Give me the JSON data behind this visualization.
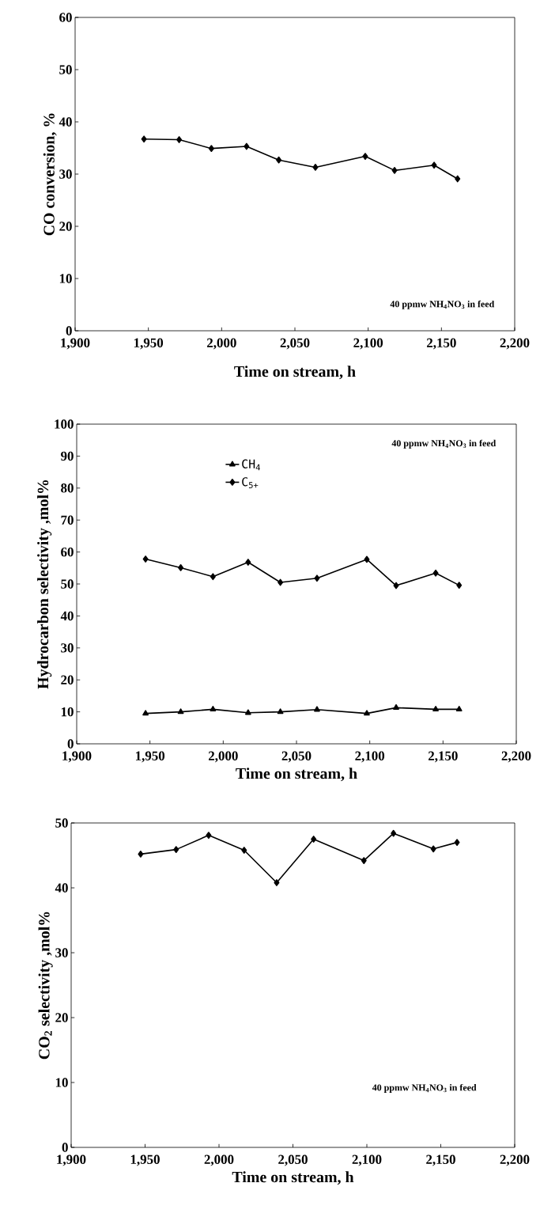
{
  "chart_data": [
    {
      "type": "line",
      "xlabel": "Time on stream, h",
      "ylabel": "CO conversion, %",
      "annotations": [
        "40 ppmw NH$_{4}$NO$_{3}$ in feed"
      ],
      "marker": "diamond",
      "line_style": "solid",
      "grid": false,
      "xlim": [
        1900,
        2200
      ],
      "xticks": [
        {
          "value": 1900,
          "label": "1,900"
        },
        {
          "value": 1950,
          "label": "1,950"
        },
        {
          "value": 2000,
          "label": "2,000"
        },
        {
          "value": 2050,
          "label": "2,050"
        },
        {
          "value": 2100,
          "label": "2,100"
        },
        {
          "value": 2150,
          "label": "2,150"
        },
        {
          "value": 2200,
          "label": "2,200"
        }
      ],
      "ylim": [
        0,
        60
      ],
      "yticks": [
        0,
        10,
        20,
        30,
        40,
        50,
        60
      ],
      "x": [
        1947,
        1971,
        1993,
        2017,
        2039,
        2064,
        2098,
        2118,
        2145,
        2161
      ],
      "series": [
        {
          "color": "#000000",
          "values": [
            36.7,
            36.6,
            34.9,
            35.3,
            32.7,
            31.3,
            33.4,
            30.7,
            31.7,
            29.1
          ]
        }
      ]
    },
    {
      "type": "line",
      "xlabel": "Time on stream, h",
      "ylabel": "Hydrocarbon selectivity ,mol%",
      "annotations": [
        "40 ppmw NH$_{4}$NO$_{3}$ in feed"
      ],
      "line_style": "solid",
      "grid": false,
      "legend": "top",
      "xlim": [
        1900,
        2200
      ],
      "xticks": [
        {
          "value": 1900,
          "label": "1,900"
        },
        {
          "value": 1950,
          "label": "1,950"
        },
        {
          "value": 2000,
          "label": "2,000"
        },
        {
          "value": 2050,
          "label": "2,050"
        },
        {
          "value": 2100,
          "label": "2,100"
        },
        {
          "value": 2150,
          "label": "2,150"
        },
        {
          "value": 2200,
          "label": "2,200"
        }
      ],
      "ylim": [
        0,
        100
      ],
      "yticks": [
        0,
        10,
        20,
        30,
        40,
        50,
        60,
        70,
        80,
        90,
        100
      ],
      "x": [
        1947,
        1971,
        1993,
        2017,
        2039,
        2064,
        2098,
        2118,
        2145,
        2161
      ],
      "series": [
        {
          "name": "CH$_{4}$",
          "color": "#000000",
          "marker": "triangle",
          "values": [
            9.5,
            10.0,
            10.8,
            9.7,
            10.0,
            10.7,
            9.5,
            11.3,
            10.8,
            10.8
          ]
        },
        {
          "name": "C$_{5+}$",
          "color": "#000000",
          "marker": "diamond",
          "values": [
            57.8,
            55.1,
            52.3,
            56.8,
            50.5,
            51.8,
            57.7,
            49.5,
            53.4,
            49.6
          ]
        }
      ]
    },
    {
      "type": "line",
      "xlabel": "Time on stream, h",
      "ylabel": "CO$_{2}$ selectivity ,mol%",
      "annotations": [
        "40 ppmw NH$_{4}$NO$_{3}$ in feed"
      ],
      "marker": "diamond",
      "line_style": "solid",
      "grid": false,
      "xlim": [
        1900,
        2200
      ],
      "xticks": [
        {
          "value": 1900,
          "label": "1,900"
        },
        {
          "value": 1950,
          "label": "1,950"
        },
        {
          "value": 2000,
          "label": "2,000"
        },
        {
          "value": 2050,
          "label": "2,050"
        },
        {
          "value": 2100,
          "label": "2,100"
        },
        {
          "value": 2150,
          "label": "2,150"
        },
        {
          "value": 2200,
          "label": "2,200"
        }
      ],
      "ylim": [
        0,
        50
      ],
      "yticks": [
        0,
        10,
        20,
        30,
        40,
        50
      ],
      "x": [
        1947,
        1971,
        1993,
        2017,
        2039,
        2064,
        2098,
        2118,
        2145,
        2161
      ],
      "series": [
        {
          "color": "#000000",
          "values": [
            45.2,
            45.9,
            48.1,
            45.8,
            40.8,
            47.5,
            44.2,
            48.4,
            46.0,
            47.0
          ]
        }
      ]
    }
  ]
}
